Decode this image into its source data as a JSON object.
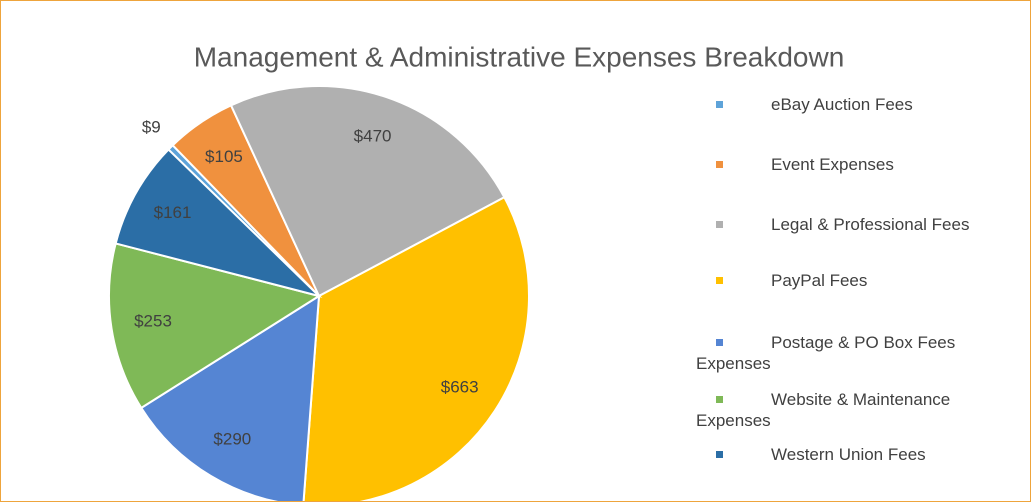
{
  "chart_data": {
    "type": "pie",
    "title": "Management & Administrative Expenses Breakdown",
    "categories": [
      "eBay Auction Fees",
      "Event Expenses",
      "Legal & Professional Fees",
      "PayPal Fees",
      "Postage & PO Box Fees Expenses",
      "Website & Maintenance Expenses",
      "Western Union Fees"
    ],
    "values": [
      9,
      105,
      470,
      663,
      290,
      253,
      161
    ],
    "value_labels": [
      "$9",
      "$105",
      "$470",
      "$663",
      "$290",
      "$253",
      "$161"
    ],
    "colors": [
      "#5ea3d9",
      "#f0913e",
      "#b0b0b0",
      "#ffc000",
      "#5585d3",
      "#7fb957",
      "#2b6ea6"
    ],
    "legend": "right"
  }
}
